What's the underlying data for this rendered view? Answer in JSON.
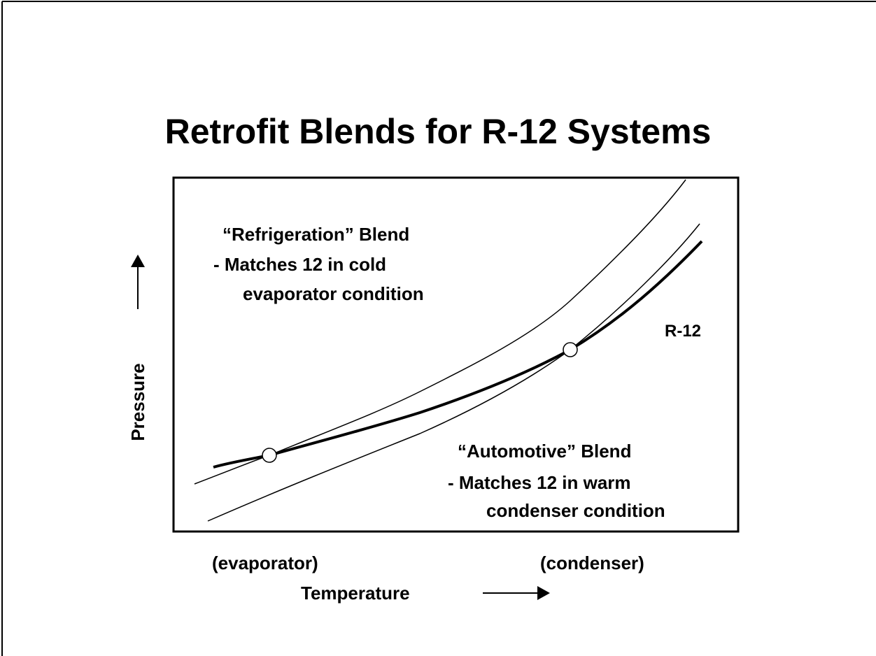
{
  "title": "Retrofit Blends for R-12 Systems",
  "refrigeration": {
    "name": "“Refrigeration” Blend",
    "lines": [
      "-  Matches 12 in cold",
      "evaporator condition"
    ]
  },
  "automotive": {
    "name": "“Automotive” Blend",
    "lines": [
      "-  Matches 12 in warm",
      "condenser condition"
    ]
  },
  "curve_label": "R-12",
  "x_axis": {
    "label": "Temperature",
    "left": "(evaporator)",
    "right": "(condenser)"
  },
  "y_axis": {
    "label": "Pressure"
  }
}
